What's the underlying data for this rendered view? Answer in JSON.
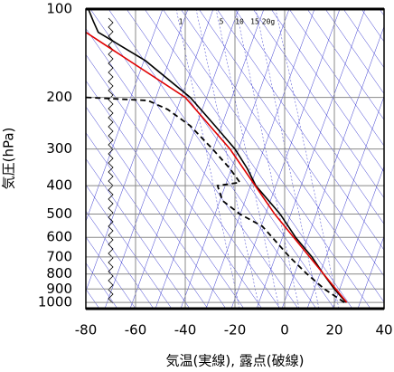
{
  "chart_data": {
    "type": "line",
    "xlabel": "気温(実線), 露点(破線)",
    "ylabel": "気圧(hPa)",
    "xlim": [
      -80,
      40
    ],
    "xticks": [
      -80,
      -60,
      -40,
      -20,
      0,
      20,
      40
    ],
    "ylim": [
      1050,
      100
    ],
    "yticks": [
      100,
      200,
      300,
      400,
      500,
      600,
      700,
      800,
      900,
      1000
    ],
    "ylog": true,
    "grid": true,
    "mixing_ratio_labels": [
      "1",
      "5",
      "10",
      "15",
      "20g"
    ],
    "series": [
      {
        "color": "#000000",
        "dashed": false,
        "x": [
          24.7,
          20,
          15.6,
          11,
          4.4,
          -1.8,
          -11.6,
          -15,
          -20,
          -28,
          -38,
          -56,
          -75,
          -77,
          -79
        ],
        "y": [
          1000,
          900,
          800,
          700,
          600,
          500,
          400,
          350,
          300,
          250,
          200,
          150,
          120,
          110,
          100
        ]
      },
      {
        "color": "#000000",
        "dashed": true,
        "x": [
          24,
          16,
          9,
          2,
          -5,
          -9,
          -18,
          -25,
          -27,
          -18,
          -22,
          -29,
          -38,
          -47,
          -55,
          -80
        ],
        "y": [
          1000,
          900,
          800,
          700,
          600,
          550,
          500,
          450,
          400,
          390,
          350,
          300,
          250,
          220,
          205,
          200
        ]
      },
      {
        "color": "#e00000",
        "dashed": false,
        "x": [
          25,
          -4,
          -22,
          -40,
          -80
        ],
        "y": [
          1000,
          500,
          300,
          200,
          120
        ]
      }
    ]
  }
}
